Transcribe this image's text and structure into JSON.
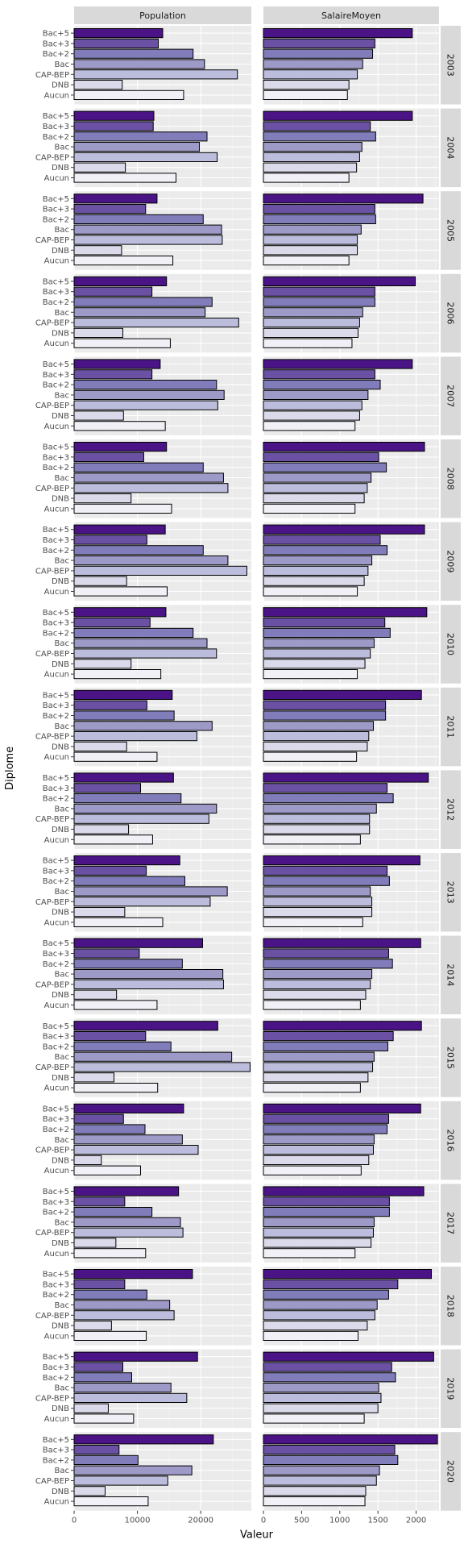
{
  "chart_data": {
    "type": "bar",
    "orientation": "horizontal",
    "facets": {
      "columns": [
        "Population",
        "SalaireMoyen"
      ],
      "rows": [
        "2003",
        "2004",
        "2005",
        "2006",
        "2007",
        "2008",
        "2009",
        "2010",
        "2011",
        "2012",
        "2013",
        "2014",
        "2015",
        "2016",
        "2017",
        "2018",
        "2019",
        "2020"
      ]
    },
    "categories": [
      "Bac+5",
      "Bac+3",
      "Bac+2",
      "Bac",
      "CAP-BEP",
      "DNB",
      "Aucun"
    ],
    "xlabel": "Valeur",
    "ylabel": "Diplome",
    "xlim": {
      "Population": [
        0,
        28000
      ],
      "SalaireMoyen": [
        0,
        2300
      ]
    },
    "xticks": {
      "Population": [
        0,
        10000,
        20000
      ],
      "SalaireMoyen": [
        0,
        500,
        1000,
        1500,
        2000
      ]
    },
    "colors": {
      "Bac+5": "#4a1486",
      "Bac+3": "#6a51a3",
      "Bac+2": "#807dba",
      "Bac": "#9e9ac8",
      "CAP-BEP": "#bcbddc",
      "DNB": "#dadaeb",
      "Aucun": "#f2f0f7"
    },
    "series": [
      {
        "year": "2003",
        "Population": [
          14000,
          13300,
          18800,
          20600,
          25800,
          7600,
          17300
        ],
        "SalaireMoyen": [
          1950,
          1460,
          1430,
          1300,
          1230,
          1120,
          1100
        ]
      },
      {
        "year": "2004",
        "Population": [
          12600,
          12500,
          21000,
          19800,
          22600,
          8100,
          16100
        ],
        "SalaireMoyen": [
          1950,
          1400,
          1470,
          1290,
          1260,
          1220,
          1120
        ]
      },
      {
        "year": "2005",
        "Population": [
          13100,
          11300,
          20400,
          23300,
          23400,
          7500,
          15600
        ],
        "SalaireMoyen": [
          2090,
          1460,
          1470,
          1280,
          1230,
          1230,
          1120
        ]
      },
      {
        "year": "2006",
        "Population": [
          14600,
          12300,
          21800,
          20700,
          26000,
          7700,
          15200
        ],
        "SalaireMoyen": [
          1990,
          1460,
          1460,
          1300,
          1260,
          1240,
          1160
        ]
      },
      {
        "year": "2007",
        "Population": [
          13600,
          12300,
          22500,
          23700,
          22700,
          7800,
          14400
        ],
        "SalaireMoyen": [
          1950,
          1460,
          1530,
          1370,
          1290,
          1260,
          1200
        ]
      },
      {
        "year": "2008",
        "Population": [
          14600,
          11000,
          20400,
          23600,
          24300,
          9000,
          15400
        ],
        "SalaireMoyen": [
          2110,
          1510,
          1610,
          1410,
          1360,
          1320,
          1200
        ]
      },
      {
        "year": "2009",
        "Population": [
          14400,
          11500,
          20400,
          24300,
          27300,
          8300,
          14700
        ],
        "SalaireMoyen": [
          2110,
          1530,
          1620,
          1420,
          1370,
          1320,
          1230
        ]
      },
      {
        "year": "2010",
        "Population": [
          14500,
          12000,
          18800,
          21000,
          22500,
          9000,
          13700
        ],
        "SalaireMoyen": [
          2140,
          1590,
          1660,
          1450,
          1400,
          1330,
          1230
        ]
      },
      {
        "year": "2011",
        "Population": [
          15500,
          11500,
          15800,
          21800,
          19400,
          8300,
          13100
        ],
        "SalaireMoyen": [
          2070,
          1600,
          1600,
          1440,
          1380,
          1360,
          1220
        ]
      },
      {
        "year": "2012",
        "Population": [
          15700,
          10500,
          16900,
          22500,
          21300,
          8600,
          12400
        ],
        "SalaireMoyen": [
          2160,
          1620,
          1700,
          1480,
          1390,
          1390,
          1270
        ]
      },
      {
        "year": "2013",
        "Population": [
          16700,
          11400,
          17500,
          24200,
          21500,
          8000,
          14000
        ],
        "SalaireMoyen": [
          2050,
          1620,
          1650,
          1400,
          1420,
          1420,
          1300
        ]
      },
      {
        "year": "2014",
        "Population": [
          20300,
          10300,
          17100,
          23500,
          23600,
          6700,
          13100
        ],
        "SalaireMoyen": [
          2060,
          1640,
          1690,
          1420,
          1400,
          1340,
          1270
        ]
      },
      {
        "year": "2015",
        "Population": [
          22700,
          11300,
          15300,
          24900,
          27800,
          6300,
          13200
        ],
        "SalaireMoyen": [
          2070,
          1700,
          1630,
          1450,
          1430,
          1370,
          1270
        ]
      },
      {
        "year": "2016",
        "Population": [
          17300,
          7800,
          11200,
          17100,
          19600,
          4300,
          10500
        ],
        "SalaireMoyen": [
          2060,
          1640,
          1620,
          1450,
          1440,
          1380,
          1280
        ]
      },
      {
        "year": "2017",
        "Population": [
          16500,
          8000,
          12300,
          16800,
          17200,
          6600,
          11300
        ],
        "SalaireMoyen": [
          2100,
          1650,
          1650,
          1450,
          1440,
          1410,
          1200
        ]
      },
      {
        "year": "2018",
        "Population": [
          18700,
          8000,
          11500,
          15100,
          15800,
          5900,
          11400
        ],
        "SalaireMoyen": [
          2200,
          1760,
          1640,
          1490,
          1460,
          1360,
          1240
        ]
      },
      {
        "year": "2019",
        "Population": [
          19500,
          7700,
          9100,
          15300,
          17800,
          5400,
          9400
        ],
        "SalaireMoyen": [
          2230,
          1680,
          1730,
          1510,
          1540,
          1500,
          1320
        ]
      },
      {
        "year": "2020",
        "Population": [
          22000,
          7100,
          10100,
          18600,
          14800,
          4900,
          11700
        ],
        "SalaireMoyen": [
          2280,
          1720,
          1760,
          1520,
          1480,
          1340,
          1330
        ]
      }
    ]
  }
}
